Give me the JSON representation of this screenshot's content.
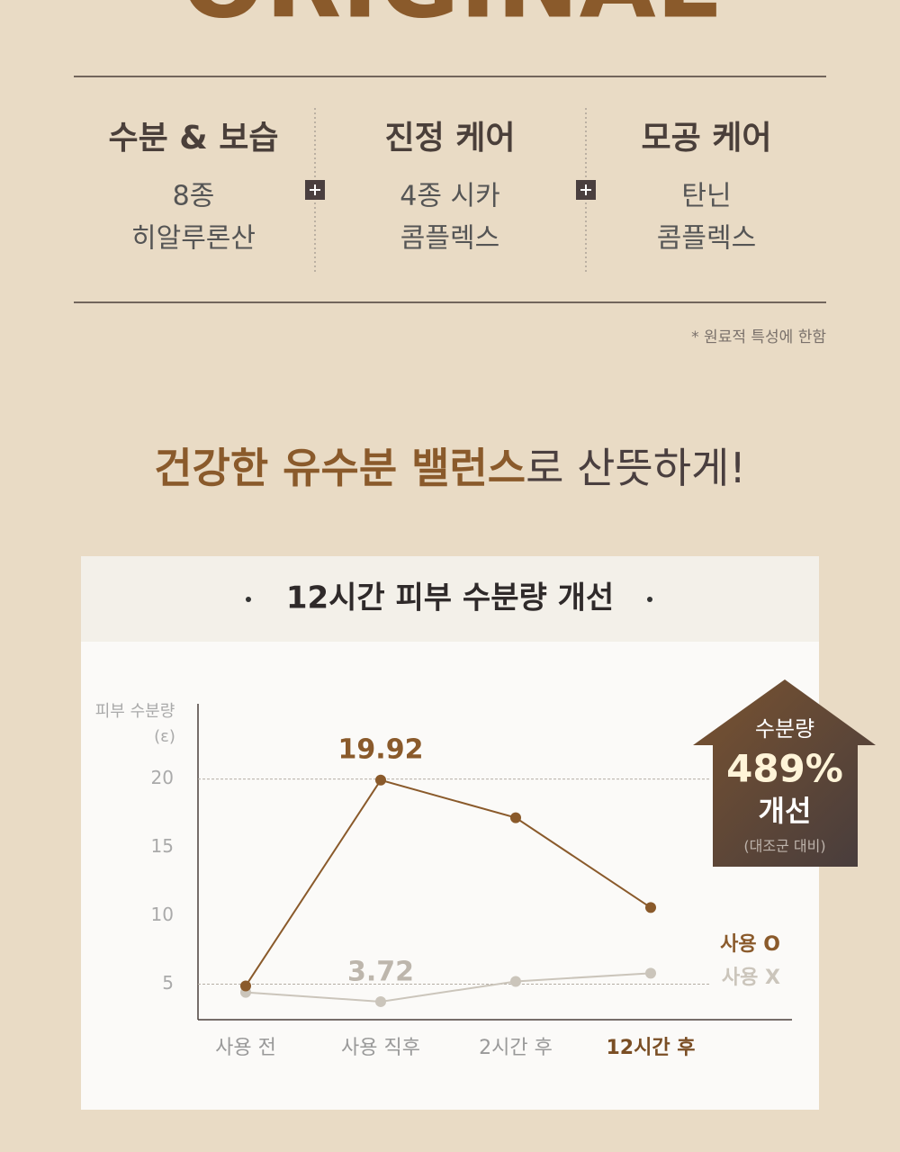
{
  "hero": {
    "title": "ORIGINAL"
  },
  "features": [
    {
      "title": "수분 & 보습",
      "lines": [
        "8종",
        "히알루론산"
      ]
    },
    {
      "title": "진정 케어",
      "lines": [
        "4종 시카",
        "콤플렉스"
      ]
    },
    {
      "title": "모공 케어",
      "lines": [
        "탄닌",
        "콤플렉스"
      ]
    }
  ],
  "note": "* 원료적 특성에 한함",
  "headline": {
    "emphasis": "건강한 유수분 밸런스",
    "rest": "로 산뜻하게!"
  },
  "chart_data": {
    "type": "line",
    "title": "12시간 피부 수분량 개선",
    "ylabel": [
      "피부 수분량",
      "(ε)"
    ],
    "categories": [
      "사용 전",
      "사용 직후",
      "2시간 후",
      "12시간 후"
    ],
    "highlight_category": 3,
    "series": [
      {
        "name": "사용 O",
        "color": "#8a5a2b",
        "values": [
          4.87,
          19.92,
          17.17,
          10.6
        ],
        "labeled": [
          false,
          true,
          false,
          false
        ]
      },
      {
        "name": "사용 X",
        "color": "#cbc5bb",
        "values": [
          4.4,
          3.72,
          5.2,
          5.8
        ],
        "labeled": [
          false,
          true,
          false,
          false
        ]
      }
    ],
    "ylim": [
      2.4,
      25.5
    ],
    "yticks": [
      5,
      10,
      15,
      20
    ],
    "grid_at": [
      5,
      20
    ],
    "badge": {
      "title": "수분량",
      "value": "489%",
      "text": "개선",
      "note": "(대조군 대비)"
    }
  }
}
